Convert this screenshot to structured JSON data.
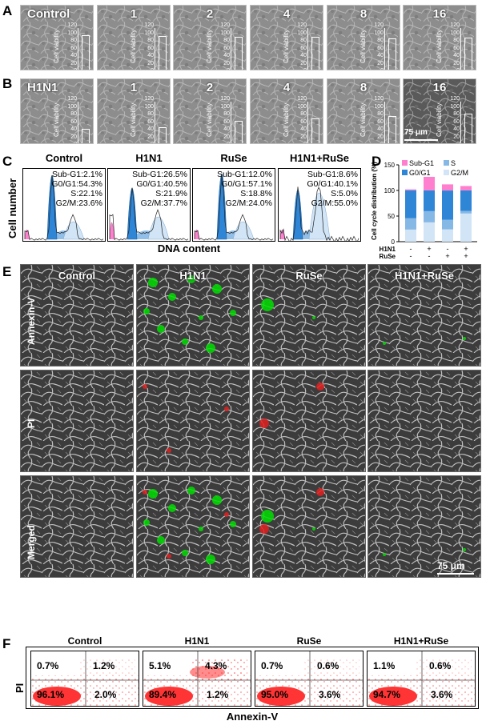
{
  "panels": {
    "A": "A",
    "B": "B",
    "C": "C",
    "D": "D",
    "E": "E",
    "F": "F"
  },
  "colors": {
    "subg1": "#ff7fcf",
    "g0g1": "#2f86d6",
    "s": "#86b8e6",
    "g2m": "#d2e5f6",
    "apop": "#00dd00",
    "pi": "#e02020",
    "dots": "#ff1a1a"
  },
  "panel_A": {
    "titles": [
      "Control",
      "1",
      "2",
      "4",
      "8",
      "16"
    ],
    "cell_viability_label": "Cell viability",
    "ticks": [
      "0",
      "20",
      "40",
      "60",
      "80",
      "100",
      "120"
    ],
    "viability": [
      100,
      99,
      97,
      96,
      93,
      94
    ]
  },
  "panel_B": {
    "titles": [
      "H1N1",
      "1",
      "2",
      "4",
      "8",
      "16"
    ],
    "cell_viability_label": "Cell viability",
    "ticks": [
      "0",
      "20",
      "40",
      "60",
      "80",
      "100",
      "120"
    ],
    "viability": [
      48,
      52,
      68,
      74,
      82,
      88
    ],
    "scale_bar": "75 μm"
  },
  "chart_data": [
    {
      "type": "histogram",
      "panel": "C",
      "ylabel": "Cell number",
      "xlabel": "DNA content",
      "groups": [
        {
          "name": "Control",
          "subg1": "Sub-G1:2.1%",
          "g0g1": "G0/G1:54.3%",
          "s": "S:22.1%",
          "g2m": "G2/M:23.6%"
        },
        {
          "name": "H1N1",
          "subg1": "Sub-G1:26.5%",
          "g0g1": "G0/G1:40.5%",
          "s": "S:21.9%",
          "g2m": "G2/M:37.7%"
        },
        {
          "name": "RuSe",
          "subg1": "Sub-G1:12.0%",
          "g0g1": "G0/G1:57.1%",
          "s": "S:18.8%",
          "g2m": "G2/M:24.0%"
        },
        {
          "name": "H1N1+RuSe",
          "subg1": "Sub-G1:8.6%",
          "g0g1": "G0/G1:40.1%",
          "s": "S:5.0%",
          "g2m": "G2/M:55.0%"
        }
      ]
    },
    {
      "type": "bar",
      "panel": "D",
      "ylabel": "Cell cycle distribution (%)",
      "ylim": [
        0,
        150
      ],
      "yticks": [
        "0",
        "50",
        "100",
        "150"
      ],
      "legend": [
        "Sub-G1",
        "S",
        "G0/G1",
        "G2/M"
      ],
      "row_labels": [
        "H1N1",
        "RuSe"
      ],
      "row_values": [
        [
          "-",
          "+",
          "-",
          "+"
        ],
        [
          "-",
          "-",
          "+",
          "+"
        ]
      ],
      "series": [
        {
          "name": "G2/M",
          "values": [
            23.6,
            37.7,
            24.0,
            55.0
          ]
        },
        {
          "name": "S",
          "values": [
            22.1,
            21.9,
            18.8,
            5.0
          ]
        },
        {
          "name": "G0/G1",
          "values": [
            54.3,
            40.5,
            57.1,
            40.1
          ]
        },
        {
          "name": "Sub-G1",
          "values": [
            2.1,
            26.5,
            12.0,
            8.6
          ]
        }
      ]
    },
    {
      "type": "scatter",
      "panel": "F",
      "ylabel": "PI",
      "xlabel": "Annexin-V",
      "groups": [
        {
          "name": "Control",
          "ul": "0.7%",
          "ur": "1.2%",
          "ll": "96.1%",
          "lr": "2.0%"
        },
        {
          "name": "H1N1",
          "ul": "5.1%",
          "ur": "4.3%",
          "ll": "89.4%",
          "lr": "1.2%"
        },
        {
          "name": "RuSe",
          "ul": "0.7%",
          "ur": "0.6%",
          "ll": "95.0%",
          "lr": "3.6%"
        },
        {
          "name": "H1N1+RuSe",
          "ul": "1.1%",
          "ur": "0.6%",
          "ll": "94.7%",
          "lr": "3.6%"
        }
      ]
    }
  ],
  "panel_E": {
    "columns": [
      "Control",
      "H1N1",
      "RuSe",
      "H1N1+RuSe"
    ],
    "rows": [
      "Annexin-V",
      "PI",
      "Merged"
    ],
    "scale_bar": "75 μm"
  }
}
